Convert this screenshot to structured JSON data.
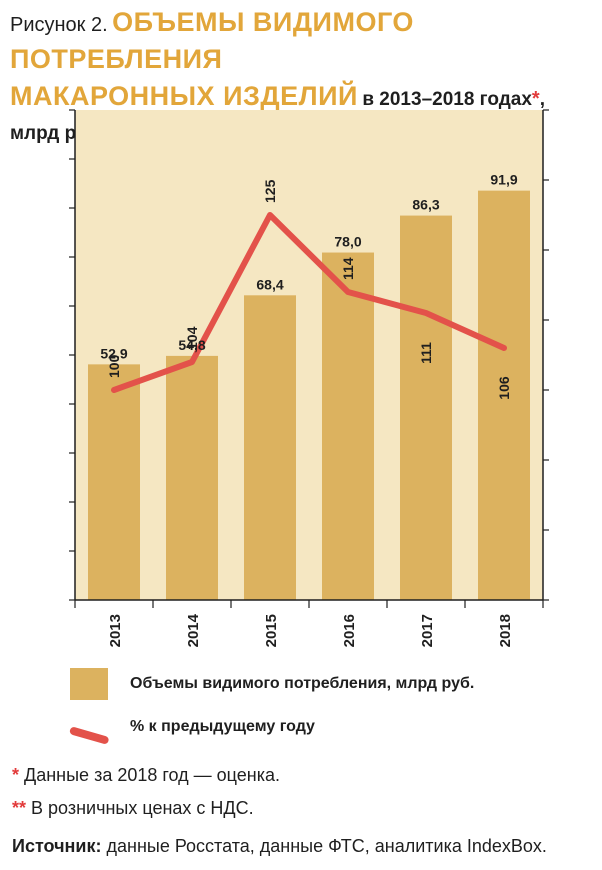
{
  "title": {
    "prefix": "Рисунок 2.",
    "accent_line1": "ОБЪЕМЫ ВИДИМОГО ПОТРЕБЛЕНИЯ",
    "accent_line2": "МАКАРОННЫХ ИЗДЕЛИЙ",
    "rest1": "в 2013–2018 годах",
    "star1": "*",
    "comma": ",",
    "rest2": "млрд руб.",
    "star2": "**"
  },
  "chart_data": {
    "type": "bar",
    "categories": [
      "2013",
      "2014",
      "2015",
      "2016",
      "2017",
      "2018"
    ],
    "series": [
      {
        "name": "Объемы видимого потребления, млрд руб.",
        "type": "bar",
        "values": [
          52.9,
          54.8,
          68.4,
          78.0,
          86.3,
          91.9
        ],
        "labels": [
          "52,9",
          "54,8",
          "68,4",
          "78,0",
          "86,3",
          "91,9"
        ],
        "color": "#dcb25f"
      },
      {
        "name": "% к предыдущему году",
        "type": "line",
        "values": [
          100,
          104,
          125,
          114,
          111,
          106
        ],
        "labels": [
          "100",
          "104",
          "125",
          "114",
          "111",
          "106"
        ],
        "color": "#e3524a"
      }
    ],
    "ylim": [
      0,
      110
    ],
    "grid": false,
    "legend_position": "bottom"
  },
  "colors": {
    "plot_background": "#f5e7c2",
    "bar": "#dcb25f",
    "line": "#e3524a",
    "axis": "#1f1f1f",
    "accent": "#e2a63a",
    "star": "#e23b3b"
  },
  "legend": {
    "bar_label": "Объемы видимого потребления, млрд руб.",
    "line_label": "% к предыдущему году"
  },
  "notes": {
    "note1_star": "*",
    "note1_text": "Данные за 2018 год — оценка.",
    "note2_star": "**",
    "note2_text": "В розничных ценах с НДС."
  },
  "source": {
    "label": "Источник:",
    "text": "данные Росстата, данные ФТС, аналитика IndexBox."
  }
}
